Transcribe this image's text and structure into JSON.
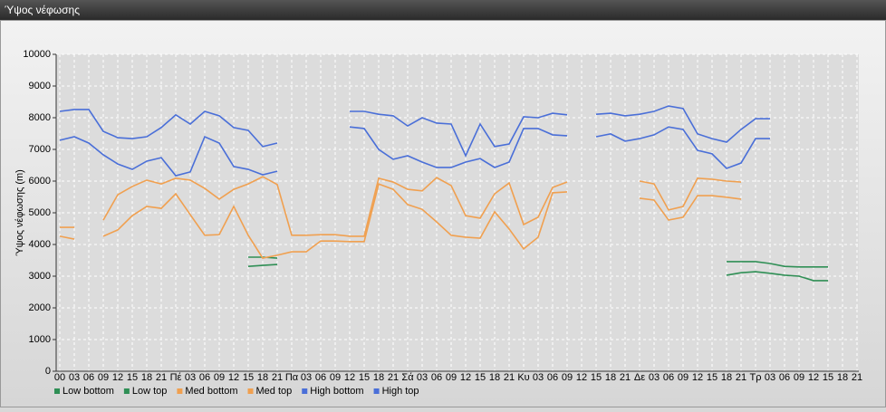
{
  "chart_data": {
    "type": "line",
    "title": "Ύψος νέφωσης",
    "ylabel": "Ύψος νέφωσης (m)",
    "categories": [
      "00",
      "03",
      "06",
      "09",
      "12",
      "15",
      "18",
      "21",
      "Πέ",
      "03",
      "06",
      "09",
      "12",
      "15",
      "18",
      "21",
      "Πα",
      "03",
      "06",
      "09",
      "12",
      "15",
      "18",
      "21",
      "Σά",
      "03",
      "06",
      "09",
      "12",
      "15",
      "18",
      "21",
      "Κυ",
      "03",
      "06",
      "09",
      "12",
      "15",
      "18",
      "21",
      "Δε",
      "03",
      "06",
      "09",
      "12",
      "15",
      "18",
      "21",
      "Τρ",
      "03",
      "06",
      "09",
      "12",
      "15",
      "18",
      "21"
    ],
    "ylim": [
      0,
      10000
    ],
    "yticks": [
      0,
      1000,
      2000,
      3000,
      4000,
      5000,
      6000,
      7000,
      8000,
      9000,
      10000
    ],
    "grid": true,
    "legend": "bottom-left",
    "series": [
      {
        "name": "Low bottom",
        "color": "#2f8f55",
        "values": [
          null,
          null,
          null,
          null,
          null,
          null,
          null,
          null,
          null,
          null,
          null,
          null,
          null,
          3310,
          3340,
          3370,
          null,
          null,
          null,
          null,
          null,
          null,
          null,
          null,
          null,
          null,
          null,
          null,
          null,
          null,
          null,
          null,
          null,
          null,
          null,
          null,
          null,
          null,
          null,
          null,
          null,
          null,
          null,
          null,
          null,
          null,
          3030,
          3110,
          3140,
          3090,
          3030,
          3000,
          2860,
          2860,
          null,
          null
        ]
      },
      {
        "name": "Low top",
        "color": "#2f8f55",
        "values": [
          null,
          null,
          null,
          null,
          null,
          null,
          null,
          null,
          null,
          null,
          null,
          null,
          null,
          3600,
          3600,
          3570,
          null,
          null,
          null,
          null,
          null,
          null,
          null,
          null,
          null,
          null,
          null,
          null,
          null,
          null,
          null,
          null,
          null,
          null,
          null,
          null,
          null,
          null,
          null,
          null,
          null,
          null,
          null,
          null,
          null,
          null,
          3460,
          3460,
          3460,
          3400,
          3310,
          3290,
          3290,
          3290,
          null,
          null
        ]
      },
      {
        "name": "Med bottom",
        "color": "#f0a050",
        "values": [
          4260,
          4170,
          null,
          4260,
          4460,
          4910,
          5200,
          5140,
          5600,
          4940,
          4290,
          4310,
          5200,
          4290,
          3570,
          3660,
          3770,
          3770,
          4110,
          4110,
          4090,
          4090,
          5910,
          5740,
          5260,
          5110,
          4710,
          4290,
          4230,
          4200,
          5030,
          4490,
          3860,
          4230,
          5630,
          5660,
          null,
          null,
          null,
          null,
          5460,
          5400,
          4770,
          4860,
          5540,
          5540,
          5490,
          5430,
          null,
          null,
          null,
          null,
          null,
          null,
          null,
          null
        ]
      },
      {
        "name": "Med top",
        "color": "#f0a050",
        "values": [
          4540,
          4540,
          null,
          4770,
          5570,
          5830,
          6030,
          5910,
          6090,
          6030,
          5770,
          5430,
          5740,
          5910,
          6140,
          5890,
          4290,
          4290,
          4310,
          4310,
          4260,
          4260,
          6090,
          5970,
          5740,
          5690,
          6110,
          5860,
          4910,
          4830,
          5600,
          5940,
          4630,
          4860,
          5800,
          5970,
          null,
          null,
          null,
          null,
          6000,
          5910,
          5090,
          5200,
          6090,
          6060,
          6000,
          5970,
          null,
          null,
          null,
          null,
          null,
          null,
          null,
          null
        ]
      },
      {
        "name": "High bottom",
        "color": "#4a6fd8",
        "values": [
          7290,
          7400,
          7200,
          6830,
          6540,
          6370,
          6630,
          6740,
          6170,
          6290,
          7400,
          7200,
          6460,
          6370,
          6200,
          6310,
          null,
          null,
          null,
          null,
          7710,
          7660,
          7000,
          6690,
          6800,
          6600,
          6430,
          6430,
          6600,
          6710,
          6430,
          6600,
          7660,
          7660,
          7460,
          7430,
          null,
          7400,
          7490,
          7260,
          7340,
          7460,
          7710,
          7630,
          6970,
          6860,
          6400,
          6570,
          7340,
          7340,
          null,
          null,
          null,
          null,
          null,
          null
        ]
      },
      {
        "name": "High top",
        "color": "#4a6fd8",
        "values": [
          8200,
          8260,
          8260,
          7570,
          7370,
          7340,
          7400,
          7690,
          8090,
          7800,
          8200,
          8060,
          7690,
          7600,
          7090,
          7200,
          null,
          null,
          null,
          null,
          8200,
          8200,
          8110,
          8060,
          7740,
          8000,
          7830,
          7800,
          6800,
          7800,
          7090,
          7170,
          8030,
          8000,
          8140,
          8090,
          null,
          8110,
          8140,
          8060,
          8110,
          8200,
          8370,
          8290,
          7490,
          7340,
          7230,
          7630,
          7970,
          7970,
          null,
          null,
          null,
          null,
          null,
          null
        ]
      }
    ]
  }
}
